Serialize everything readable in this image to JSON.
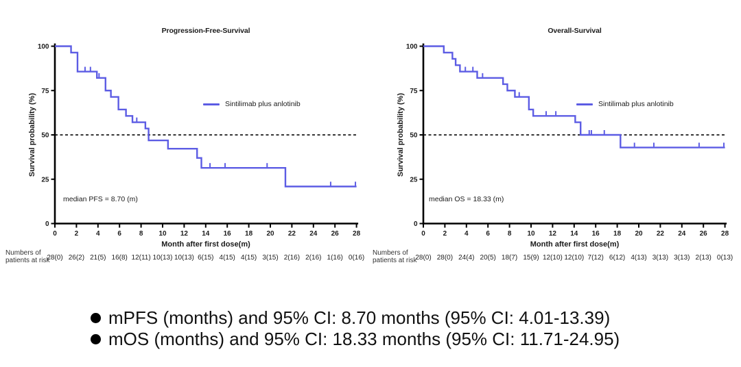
{
  "colors": {
    "curve": "#5c5ce4",
    "axis": "#000000",
    "reference_line": "#1a1a1a",
    "text": "#1a1a1a"
  },
  "chart_data": [
    {
      "type": "line",
      "subtype": "kaplan-meier-step",
      "title": "Progression-Free-Survival",
      "xlabel": "Month after first dose(m)",
      "ylabel": "Survival probability (%)",
      "legend": [
        "Sintilimab plus anlotinib"
      ],
      "legend_position": "middle-right",
      "xlim": [
        0,
        28
      ],
      "ylim": [
        0,
        100
      ],
      "xticks": [
        0,
        2,
        4,
        6,
        8,
        10,
        12,
        14,
        16,
        18,
        20,
        22,
        24,
        26,
        28
      ],
      "yticks": [
        0,
        25,
        50,
        75,
        100
      ],
      "grid": false,
      "reference_line_y": 50,
      "median_annotation": "median PFS = 8.70 (m)",
      "median_value_months": 8.7,
      "steps": [
        [
          0,
          100
        ],
        [
          1.5,
          96.4
        ],
        [
          2.1,
          85.7
        ],
        [
          3.9,
          82.1
        ],
        [
          4.7,
          75.0
        ],
        [
          5.2,
          71.4
        ],
        [
          5.9,
          64.3
        ],
        [
          6.6,
          60.7
        ],
        [
          7.2,
          57.1
        ],
        [
          8.4,
          53.6
        ],
        [
          8.7,
          46.9
        ],
        [
          10.5,
          42.2
        ],
        [
          13.2,
          37.0
        ],
        [
          13.6,
          31.4
        ],
        [
          21.4,
          20.9
        ],
        [
          28,
          20.9
        ]
      ],
      "censor_marks": [
        [
          2.8,
          85.7
        ],
        [
          3.3,
          85.7
        ],
        [
          4.1,
          82.1
        ],
        [
          7.6,
          57.1
        ],
        [
          14.4,
          31.4
        ],
        [
          15.8,
          31.4
        ],
        [
          19.7,
          31.4
        ],
        [
          25.6,
          20.9
        ],
        [
          27.9,
          20.9
        ]
      ],
      "at_risk_caption": [
        "Numbers of",
        "patients at risk"
      ],
      "at_risk": [
        "28(0)",
        "26(2)",
        "21(5)",
        "16(8)",
        "12(11)",
        "10(13)",
        "10(13)",
        "6(15)",
        "4(15)",
        "4(15)",
        "3(15)",
        "2(16)",
        "2(16)",
        "1(16)",
        "0(16)"
      ]
    },
    {
      "type": "line",
      "subtype": "kaplan-meier-step",
      "title": "Overall-Survival",
      "xlabel": "Month after first dose(m)",
      "ylabel": "Survival probability (%)",
      "legend": [
        "Sintilimab plus anlotinib"
      ],
      "legend_position": "middle-right",
      "xlim": [
        0,
        28
      ],
      "ylim": [
        0,
        100
      ],
      "xticks": [
        0,
        2,
        4,
        6,
        8,
        10,
        12,
        14,
        16,
        18,
        20,
        22,
        24,
        26,
        28
      ],
      "yticks": [
        0,
        25,
        50,
        75,
        100
      ],
      "grid": false,
      "reference_line_y": 50,
      "median_annotation": "median OS = 18.33 (m)",
      "median_value_months": 18.33,
      "steps": [
        [
          0,
          100
        ],
        [
          1.9,
          96.4
        ],
        [
          2.7,
          92.9
        ],
        [
          3.0,
          89.3
        ],
        [
          3.4,
          85.7
        ],
        [
          5.0,
          82.1
        ],
        [
          7.4,
          78.6
        ],
        [
          7.8,
          75.0
        ],
        [
          8.5,
          71.4
        ],
        [
          9.8,
          64.3
        ],
        [
          10.2,
          60.7
        ],
        [
          14.1,
          57.1
        ],
        [
          14.6,
          50.0
        ],
        [
          18.3,
          42.9
        ],
        [
          28,
          42.9
        ]
      ],
      "censor_marks": [
        [
          3.9,
          85.7
        ],
        [
          4.6,
          85.7
        ],
        [
          5.5,
          82.1
        ],
        [
          8.9,
          71.4
        ],
        [
          11.4,
          60.7
        ],
        [
          12.3,
          60.7
        ],
        [
          15.4,
          50.0
        ],
        [
          15.6,
          50.0
        ],
        [
          16.8,
          50.0
        ],
        [
          19.6,
          42.9
        ],
        [
          21.4,
          42.9
        ],
        [
          25.6,
          42.9
        ],
        [
          27.9,
          42.9
        ]
      ],
      "at_risk_caption": [
        "Numbers of",
        "patients at risk"
      ],
      "at_risk": [
        "28(0)",
        "28(0)",
        "24(4)",
        "20(5)",
        "18(7)",
        "15(9)",
        "12(10)",
        "12(10)",
        "7(12)",
        "6(12)",
        "4(13)",
        "3(13)",
        "3(13)",
        "2(13)",
        "0(13)"
      ]
    }
  ],
  "summary_bullets": [
    "mPFS (months) and 95% CI: 8.70 months (95% CI: 4.01-13.39)",
    "mOS (months) and 95% CI: 18.33 months (95% CI: 11.71-24.95)"
  ]
}
